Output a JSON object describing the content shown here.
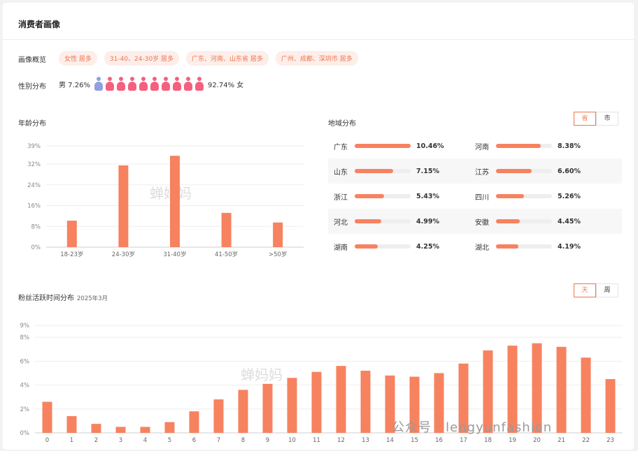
{
  "header": {
    "title": "消费者画像"
  },
  "overview": {
    "label": "画像概览",
    "tags": [
      "女性 居多",
      "31-40、24-30岁 居多",
      "广东、河南、山东省 居多",
      "广州、成都、深圳市 居多"
    ]
  },
  "gender": {
    "label": "性别分布",
    "male_label": "男 7.26%",
    "female_label": "92.74% 女",
    "icons": [
      "male",
      "female",
      "female",
      "female",
      "female",
      "female",
      "female",
      "female",
      "female",
      "female"
    ],
    "colors": {
      "male": "#8fa1e0",
      "female": "#f4617f"
    }
  },
  "age": {
    "title": "年龄分布"
  },
  "region": {
    "title": "地域分布",
    "toggle": [
      "省",
      "市"
    ],
    "active": "省",
    "items": [
      {
        "name": "广东",
        "value": "10.46%",
        "pct": 10.46
      },
      {
        "name": "河南",
        "value": "8.38%",
        "pct": 8.38
      },
      {
        "name": "山东",
        "value": "7.15%",
        "pct": 7.15
      },
      {
        "name": "江苏",
        "value": "6.60%",
        "pct": 6.6
      },
      {
        "name": "浙江",
        "value": "5.43%",
        "pct": 5.43
      },
      {
        "name": "四川",
        "value": "5.26%",
        "pct": 5.26
      },
      {
        "name": "河北",
        "value": "4.99%",
        "pct": 4.99
      },
      {
        "name": "安徽",
        "value": "4.45%",
        "pct": 4.45
      },
      {
        "name": "湖南",
        "value": "4.25%",
        "pct": 4.25
      },
      {
        "name": "湖北",
        "value": "4.19%",
        "pct": 4.19
      }
    ]
  },
  "activity": {
    "title": "粉丝活跃时间分布",
    "subtitle": "2025年3月",
    "toggle": [
      "天",
      "周"
    ],
    "active": "天"
  },
  "watermarks": {
    "chart_logo": "蝉妈妈",
    "footer": "公众号 · lengyunfashion"
  },
  "colors": {
    "accent": "#f0744f",
    "bar": "#f7825f",
    "tag_bg": "#fdeee9"
  },
  "chart_data": [
    {
      "type": "bar",
      "title": "年龄分布",
      "categories": [
        "18-23岁",
        "24-30岁",
        "31-40岁",
        "41-50岁",
        ">50岁"
      ],
      "values": [
        10.2,
        31.5,
        35.2,
        13.2,
        9.5
      ],
      "ytick_labels": [
        "0%",
        "8%",
        "16%",
        "24%",
        "32%",
        "39%"
      ],
      "ytick_values": [
        0,
        8,
        16,
        24,
        32,
        39
      ],
      "ylim": [
        0,
        39
      ],
      "grid": true
    },
    {
      "type": "bar",
      "title": "粉丝活跃时间分布",
      "categories": [
        "0",
        "1",
        "2",
        "3",
        "4",
        "5",
        "6",
        "7",
        "8",
        "9",
        "10",
        "11",
        "12",
        "13",
        "14",
        "15",
        "16",
        "17",
        "18",
        "19",
        "20",
        "21",
        "22",
        "23"
      ],
      "values": [
        2.6,
        1.4,
        0.75,
        0.5,
        0.5,
        0.9,
        1.8,
        2.8,
        3.6,
        4.1,
        4.6,
        5.1,
        5.6,
        5.2,
        4.8,
        4.7,
        5.0,
        5.8,
        6.9,
        7.3,
        7.5,
        7.2,
        6.3,
        4.5
      ],
      "ytick_labels": [
        "0%",
        "2%",
        "4%",
        "6%",
        "8%",
        "9%"
      ],
      "ytick_values": [
        0,
        2,
        4,
        6,
        8,
        9
      ],
      "ylim": [
        0,
        9
      ],
      "grid": true
    }
  ]
}
